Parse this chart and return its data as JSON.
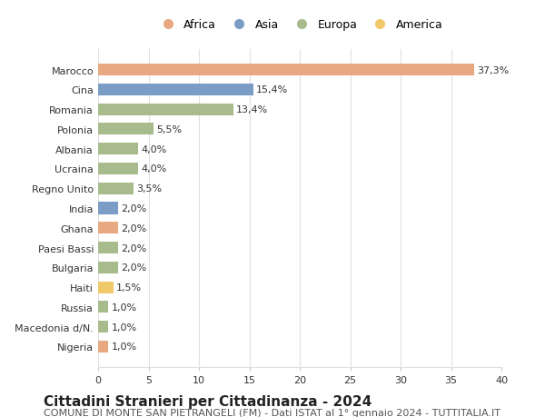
{
  "title": "Cittadini Stranieri per Cittadinanza - 2024",
  "subtitle": "COMUNE DI MONTE SAN PIETRANGELI (FM) - Dati ISTAT al 1° gennaio 2024 - TUTTITALIA.IT",
  "categories": [
    "Marocco",
    "Cina",
    "Romania",
    "Polonia",
    "Albania",
    "Ucraina",
    "Regno Unito",
    "India",
    "Ghana",
    "Paesi Bassi",
    "Bulgaria",
    "Haiti",
    "Russia",
    "Macedonia d/N.",
    "Nigeria"
  ],
  "values": [
    37.3,
    15.4,
    13.4,
    5.5,
    4.0,
    4.0,
    3.5,
    2.0,
    2.0,
    2.0,
    2.0,
    1.5,
    1.0,
    1.0,
    1.0
  ],
  "labels": [
    "37,3%",
    "15,4%",
    "13,4%",
    "5,5%",
    "4,0%",
    "4,0%",
    "3,5%",
    "2,0%",
    "2,0%",
    "2,0%",
    "2,0%",
    "1,5%",
    "1,0%",
    "1,0%",
    "1,0%"
  ],
  "continents": [
    "Africa",
    "Asia",
    "Europa",
    "Europa",
    "Europa",
    "Europa",
    "Europa",
    "Asia",
    "Africa",
    "Europa",
    "Europa",
    "America",
    "Europa",
    "Europa",
    "Africa"
  ],
  "continent_colors": {
    "Africa": "#E8A882",
    "Asia": "#7A9CC5",
    "Europa": "#A8BB8C",
    "America": "#F0C96A"
  },
  "legend_order": [
    "Africa",
    "Asia",
    "Europa",
    "America"
  ],
  "xlim": [
    0,
    40
  ],
  "xticks": [
    0,
    5,
    10,
    15,
    20,
    25,
    30,
    35,
    40
  ],
  "background_color": "#ffffff",
  "grid_color": "#e0e0e0",
  "title_fontsize": 11,
  "subtitle_fontsize": 8,
  "label_fontsize": 8,
  "tick_fontsize": 8,
  "legend_fontsize": 9
}
